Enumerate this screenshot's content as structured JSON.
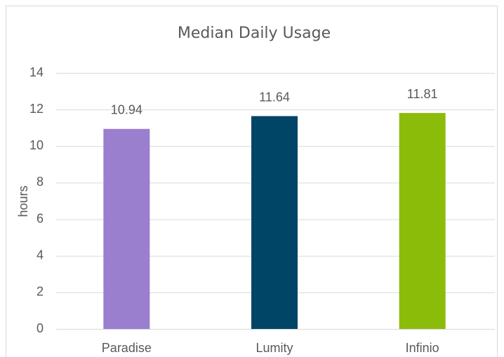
{
  "chart_data": {
    "type": "bar",
    "title": "Median Daily Usage",
    "y_label": "hours",
    "categories": [
      "Paradise",
      "Lumity",
      "Infinio"
    ],
    "values": [
      10.94,
      11.64,
      11.81
    ],
    "colors": [
      "#9b7fcf",
      "#004466",
      "#8cbc0a"
    ],
    "ylim": [
      0,
      14
    ],
    "yticks": [
      0,
      2,
      4,
      6,
      8,
      10,
      12,
      14
    ],
    "grid": true
  }
}
